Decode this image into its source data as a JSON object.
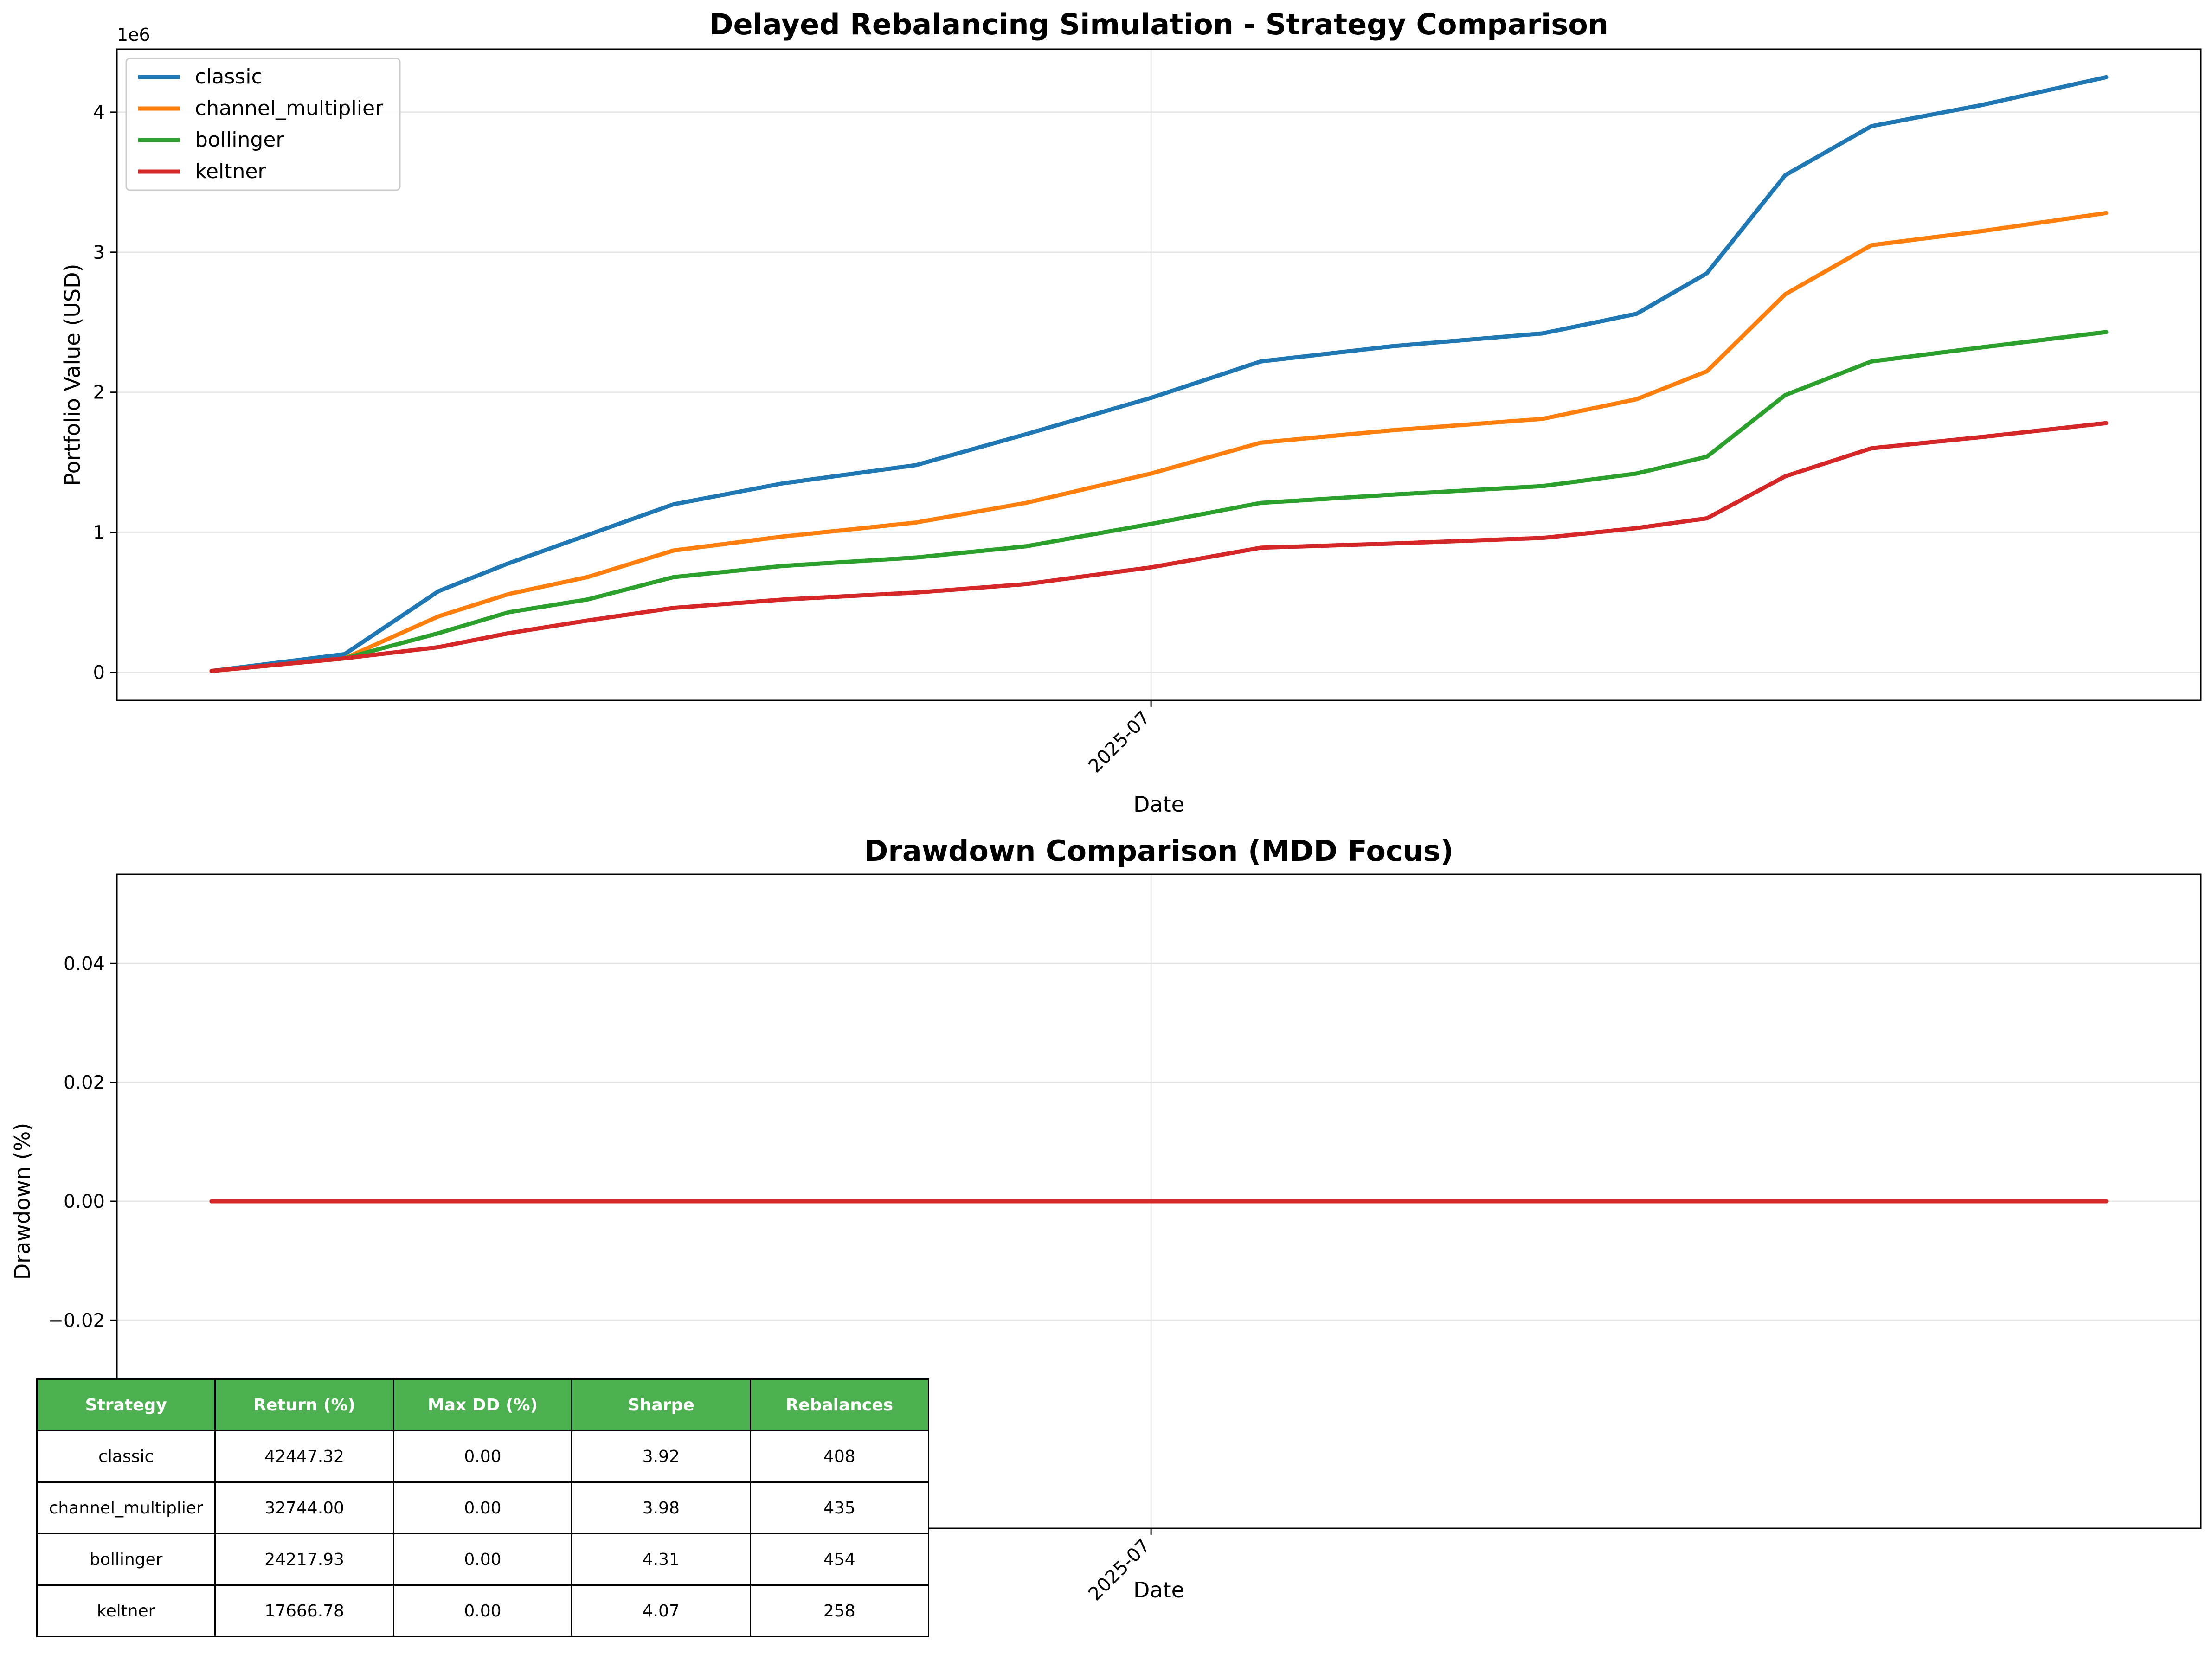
{
  "figure": {
    "axis_label_x": "Date",
    "x_tick": "2025-07"
  },
  "chart_data": [
    {
      "type": "line",
      "title": "Delayed Rebalancing Simulation - Strategy Comparison",
      "xlabel": "Date",
      "ylabel": "Portfolio Value (USD)",
      "y_offset_label": "1e6",
      "x_ticks": [
        "2025-07"
      ],
      "y_ticks": [
        "0",
        "1",
        "2",
        "3",
        "4"
      ],
      "ylim": [
        -200000,
        4450000
      ],
      "x_range": [
        "2025-03-03",
        "2025-10-31"
      ],
      "grid": true,
      "legend_position": "top-left",
      "x": [
        "2025-03-03",
        "2025-03-20",
        "2025-04-01",
        "2025-04-10",
        "2025-04-20",
        "2025-05-01",
        "2025-05-15",
        "2025-06-01",
        "2025-06-15",
        "2025-07-01",
        "2025-07-15",
        "2025-08-01",
        "2025-08-20",
        "2025-09-01",
        "2025-09-10",
        "2025-09-20",
        "2025-10-01",
        "2025-10-15",
        "2025-10-31"
      ],
      "series": [
        {
          "name": "classic",
          "color": "#1f77b4",
          "values": [
            10000,
            130000,
            580000,
            780000,
            980000,
            1200000,
            1350000,
            1480000,
            1700000,
            1960000,
            2220000,
            2330000,
            2420000,
            2560000,
            2850000,
            3550000,
            3900000,
            4050000,
            4250000
          ]
        },
        {
          "name": "channel_multiplier",
          "color": "#ff7f0e",
          "values": [
            10000,
            100000,
            400000,
            560000,
            680000,
            870000,
            970000,
            1070000,
            1210000,
            1420000,
            1640000,
            1730000,
            1810000,
            1950000,
            2150000,
            2700000,
            3050000,
            3150000,
            3280000
          ]
        },
        {
          "name": "bollinger",
          "color": "#2ca02c",
          "values": [
            10000,
            100000,
            280000,
            430000,
            520000,
            680000,
            760000,
            820000,
            900000,
            1060000,
            1210000,
            1270000,
            1330000,
            1420000,
            1540000,
            1980000,
            2220000,
            2320000,
            2430000
          ]
        },
        {
          "name": "keltner",
          "color": "#d62728",
          "values": [
            10000,
            100000,
            180000,
            280000,
            370000,
            460000,
            520000,
            570000,
            630000,
            750000,
            890000,
            920000,
            960000,
            1030000,
            1100000,
            1400000,
            1600000,
            1680000,
            1780000
          ]
        }
      ]
    },
    {
      "type": "line",
      "title": "Drawdown Comparison (MDD Focus)",
      "xlabel": "Date",
      "ylabel": "Drawdown (%)",
      "x_ticks": [
        "2025-07"
      ],
      "y_ticks": [
        "−0.02",
        "0.00",
        "0.02",
        "0.04"
      ],
      "ylim": [
        -0.055,
        0.055
      ],
      "x_range": [
        "2025-03-03",
        "2025-10-31"
      ],
      "grid": true,
      "x": [
        "2025-03-03",
        "2025-10-31"
      ],
      "series": [
        {
          "name": "classic",
          "color": "#1f77b4",
          "values": [
            0,
            0
          ]
        },
        {
          "name": "channel_multiplier",
          "color": "#ff7f0e",
          "values": [
            0,
            0
          ]
        },
        {
          "name": "bollinger",
          "color": "#2ca02c",
          "values": [
            0,
            0
          ]
        },
        {
          "name": "keltner",
          "color": "#d62728",
          "values": [
            0,
            0
          ]
        }
      ]
    },
    {
      "type": "table",
      "columns": [
        "Strategy",
        "Return (%)",
        "Max DD (%)",
        "Sharpe",
        "Rebalances"
      ],
      "rows": [
        [
          "classic",
          "42447.32",
          "0.00",
          "3.92",
          "408"
        ],
        [
          "channel_multiplier",
          "32744.00",
          "0.00",
          "3.98",
          "435"
        ],
        [
          "bollinger",
          "24217.93",
          "0.00",
          "4.31",
          "454"
        ],
        [
          "keltner",
          "17666.78",
          "0.00",
          "4.07",
          "258"
        ]
      ],
      "header_color": "#4caf50"
    }
  ]
}
